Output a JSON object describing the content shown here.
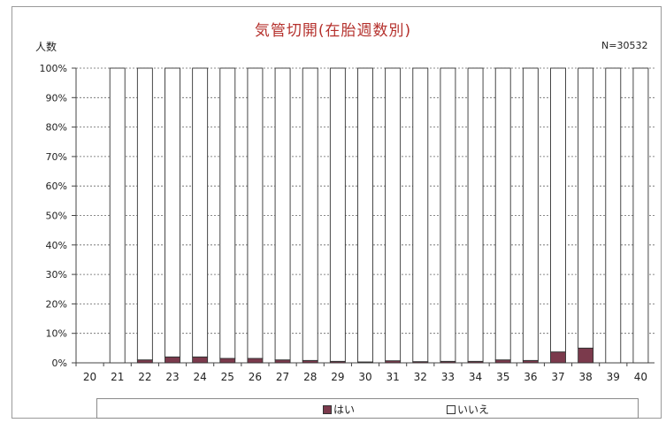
{
  "chart_data": {
    "type": "bar",
    "stacked": "percent",
    "title": "気管切開(在胎週数別)",
    "ylabel": "人数",
    "note": "N=30532",
    "categories": [
      "20",
      "21",
      "22",
      "23",
      "24",
      "25",
      "26",
      "27",
      "28",
      "29",
      "30",
      "31",
      "32",
      "33",
      "34",
      "35",
      "36",
      "37",
      "38",
      "39",
      "40"
    ],
    "yticks": [
      "0%",
      "10%",
      "20%",
      "30%",
      "40%",
      "50%",
      "60%",
      "70%",
      "80%",
      "90%",
      "100%"
    ],
    "ylim": [
      0,
      100
    ],
    "grid": true,
    "legend_position": "bottom",
    "series": [
      {
        "name": "はい",
        "color": "#7b3a4c",
        "values": [
          0,
          0,
          1,
          2,
          2,
          1.5,
          1.5,
          1,
          0.8,
          0.5,
          0.3,
          0.7,
          0.4,
          0.5,
          0.5,
          1,
          0.8,
          3.7,
          5,
          0,
          0
        ]
      },
      {
        "name": "いいえ",
        "color": "#ffffff",
        "values": [
          0,
          100,
          99,
          98,
          98,
          98.5,
          98.5,
          99,
          99.2,
          99.5,
          99.7,
          99.3,
          99.6,
          99.5,
          99.5,
          99,
          99.2,
          96.3,
          95,
          100,
          100
        ]
      }
    ]
  }
}
